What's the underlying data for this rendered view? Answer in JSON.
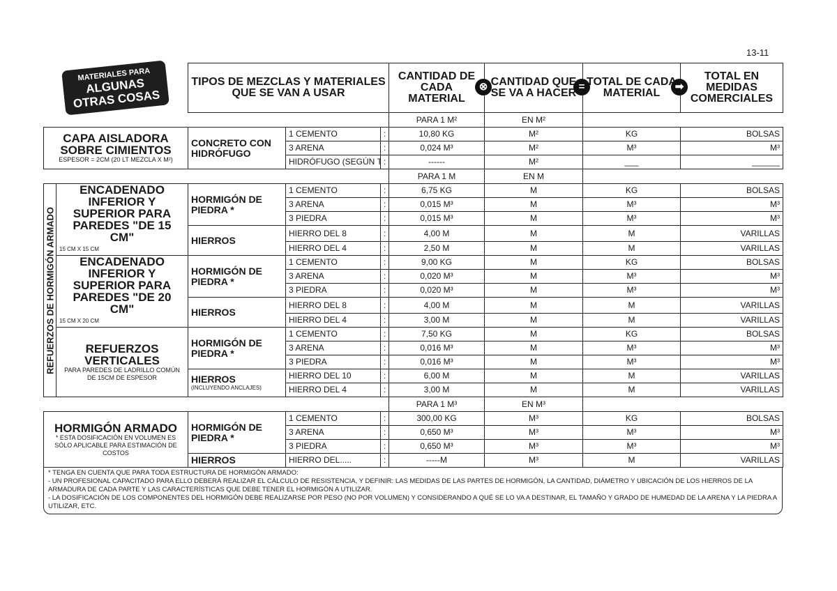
{
  "page_number": "13-11",
  "badge": {
    "line1": "MATERIALES PARA",
    "line2": "ALGUNAS",
    "line3": "OTRAS COSAS"
  },
  "headers": {
    "tipos": "TIPOS DE MEZCLAS Y MATERIALES QUE SE VAN A USAR",
    "cantidad": "CANTIDAD DE CADA MATERIAL",
    "hacer": "CANTIDAD QUE SE VA A HACER",
    "total": "TOTAL DE CADA MATERIAL",
    "comercial": "TOTAL EN MEDIDAS COMERCIALES"
  },
  "operators": {
    "multiply-icon": "⊗",
    "equals-icon": "=",
    "arrow-right-icon": "➡"
  },
  "vertical_label": "REFUERZOS DE HORMIGÓN ARMADO",
  "sections": [
    {
      "para": "PARA 1 M²",
      "en": "EN M²",
      "blocks": [
        {
          "title": "CAPA AISLADORA SOBRE CIMIENTOS",
          "note": "ESPESOR = 2cm (20 Lt MEZCLA X M²)",
          "caption": "",
          "groups": [
            {
              "type": "CONCRETO CON HIDRÓFUGO",
              "sub": "",
              "rows": [
                {
                  "material": "1 CEMENTO",
                  "qty": "10,80 KG",
                  "hacer": "M²",
                  "total": "KG",
                  "comercial": "BOLSAS"
                },
                {
                  "material": "3 ARENA",
                  "qty": "0,024 M³",
                  "hacer": "M²",
                  "total": "M³",
                  "comercial": "M³"
                },
                {
                  "material": "HIDRÓFUGO (SEGÚN TIPO):",
                  "qty": "------",
                  "hacer": "M²",
                  "total": "___",
                  "comercial": "______"
                }
              ]
            }
          ]
        }
      ]
    },
    {
      "para": "PARA 1 M",
      "en": "EN M",
      "vertical": true,
      "blocks": [
        {
          "title": "ENCADENADO INFERIOR Y SUPERIOR PARA PAREDES \"DE 15 cm\"",
          "note": "",
          "caption": "15 cm x 15 cm",
          "groups": [
            {
              "type": "HORMIGÓN DE PIEDRA *",
              "sub": "",
              "rows": [
                {
                  "material": "1 CEMENTO",
                  "qty": "6,75 KG",
                  "hacer": "M",
                  "total": "KG",
                  "comercial": "BOLSAS"
                },
                {
                  "material": "3 ARENA",
                  "qty": "0,015 M³",
                  "hacer": "M",
                  "total": "M³",
                  "comercial": "M³"
                },
                {
                  "material": "3 PIEDRA",
                  "qty": "0,015 M³",
                  "hacer": "M",
                  "total": "M³",
                  "comercial": "M³"
                }
              ]
            },
            {
              "type": "HIERROS",
              "sub": "",
              "rows": [
                {
                  "material": "HIERRO DEL 8",
                  "qty": "4,00 M",
                  "hacer": "M",
                  "total": "M",
                  "comercial": "VARILLAS"
                },
                {
                  "material": "HIERRO DEL 4",
                  "qty": "2,50 M",
                  "hacer": "M",
                  "total": "M",
                  "comercial": "VARILLAS"
                }
              ]
            }
          ]
        },
        {
          "title": "ENCADENADO INFERIOR Y SUPERIOR PARA PAREDES \"DE 20 cm\"",
          "note": "",
          "caption": "15 cm x 20 cm",
          "groups": [
            {
              "type": "HORMIGÓN DE PIEDRA *",
              "sub": "",
              "rows": [
                {
                  "material": "1 CEMENTO",
                  "qty": "9,00 KG",
                  "hacer": "M",
                  "total": "KG",
                  "comercial": "BOLSAS"
                },
                {
                  "material": "3 ARENA",
                  "qty": "0,020 M³",
                  "hacer": "M",
                  "total": "M³",
                  "comercial": "M³"
                },
                {
                  "material": "3 PIEDRA",
                  "qty": "0,020 M³",
                  "hacer": "M",
                  "total": "M³",
                  "comercial": "M³"
                }
              ]
            },
            {
              "type": "HIERROS",
              "sub": "",
              "rows": [
                {
                  "material": "HIERRO DEL 8",
                  "qty": "4,00 M",
                  "hacer": "M",
                  "total": "M",
                  "comercial": "VARILLAS"
                },
                {
                  "material": "HIERRO DEL 4",
                  "qty": "3,00 M",
                  "hacer": "M",
                  "total": "M",
                  "comercial": "VARILLAS"
                }
              ]
            }
          ]
        },
        {
          "title": "REFUERZOS VERTICALES",
          "note": "PARA PAREDES DE LADRILLO COMÚN DE 15cm DE ESPESOR",
          "caption": "",
          "groups": [
            {
              "type": "HORMIGÓN DE PIEDRA *",
              "sub": "",
              "rows": [
                {
                  "material": "1 CEMENTO",
                  "qty": "7,50 KG",
                  "hacer": "M",
                  "total": "KG",
                  "comercial": "BOLSAS"
                },
                {
                  "material": "3 ARENA",
                  "qty": "0,016 M³",
                  "hacer": "M",
                  "total": "M³",
                  "comercial": "M³"
                },
                {
                  "material": "3 PIEDRA",
                  "qty": "0,016 M³",
                  "hacer": "M",
                  "total": "M³",
                  "comercial": "M³"
                }
              ]
            },
            {
              "type": "HIERROS",
              "sub": "(INCLUYENDO ANCLAJES)",
              "rows": [
                {
                  "material": "HIERRO DEL 10",
                  "qty": "6,00 M",
                  "hacer": "M",
                  "total": "M",
                  "comercial": "VARILLAS"
                },
                {
                  "material": "HIERRO DEL 4",
                  "qty": "3,00 M",
                  "hacer": "M",
                  "total": "M",
                  "comercial": "VARILLAS"
                }
              ]
            }
          ]
        }
      ]
    },
    {
      "para": "PARA 1 M³",
      "en": "EN M³",
      "blocks": [
        {
          "title": "HORMIGÓN ARMADO",
          "note": "* ESTA DOSIFICACIÓN EN VOLUMEN ES SÓLO APLICABLE PARA ESTIMACIÓN DE COSTOS",
          "caption": "",
          "groups": [
            {
              "type": "HORMIGÓN DE PIEDRA *",
              "sub": "",
              "rows": [
                {
                  "material": "1 CEMENTO",
                  "qty": "300,00 KG",
                  "hacer": "M³",
                  "total": "KG",
                  "comercial": "BOLSAS"
                },
                {
                  "material": "3 ARENA",
                  "qty": "0,650 M³",
                  "hacer": "M³",
                  "total": "M³",
                  "comercial": "M³"
                },
                {
                  "material": "3 PIEDRA",
                  "qty": "0,650 M³",
                  "hacer": "M³",
                  "total": "M³",
                  "comercial": "M³"
                }
              ]
            },
            {
              "type": "HIERROS",
              "sub": "",
              "rows": [
                {
                  "material": "HIERRO DEL.....",
                  "qty": "-----M",
                  "hacer": "M³",
                  "total": "M",
                  "comercial": "VARILLAS"
                }
              ]
            }
          ]
        }
      ]
    }
  ],
  "notes": [
    "* TENGA EN CUENTA QUE PARA TODA ESTRUCTURA DE HORMIGÓN ARMADO:",
    "- UN PROFESIONAL CAPACITADO PARA ELLO DEBERÁ REALIZAR EL CÁLCULO DE RESISTENCIA, Y DEFINIR: LAS MEDIDAS DE LAS PARTES DE HORMIGÓN, LA CANTIDAD, DIÁMETRO Y UBICACIÓN DE LOS HIERROS DE LA ARMADURA DE CADA PARTE Y LAS CARACTERÍSTICAS QUE DEBE TENER EL HORMIGÓN A UTILIZAR.",
    "- LA DOSIFICACIÓN DE LOS COMPONENTES DEL HORMIGÓN DEBE REALIZARSE POR PESO (NO POR VOLUMEN) Y CONSIDERANDO A QUÉ SE LO VA A DESTINAR, EL TAMAÑO Y GRADO DE HUMEDAD DE LA ARENA Y LA PIEDRA A UTILIZAR, ETC."
  ]
}
